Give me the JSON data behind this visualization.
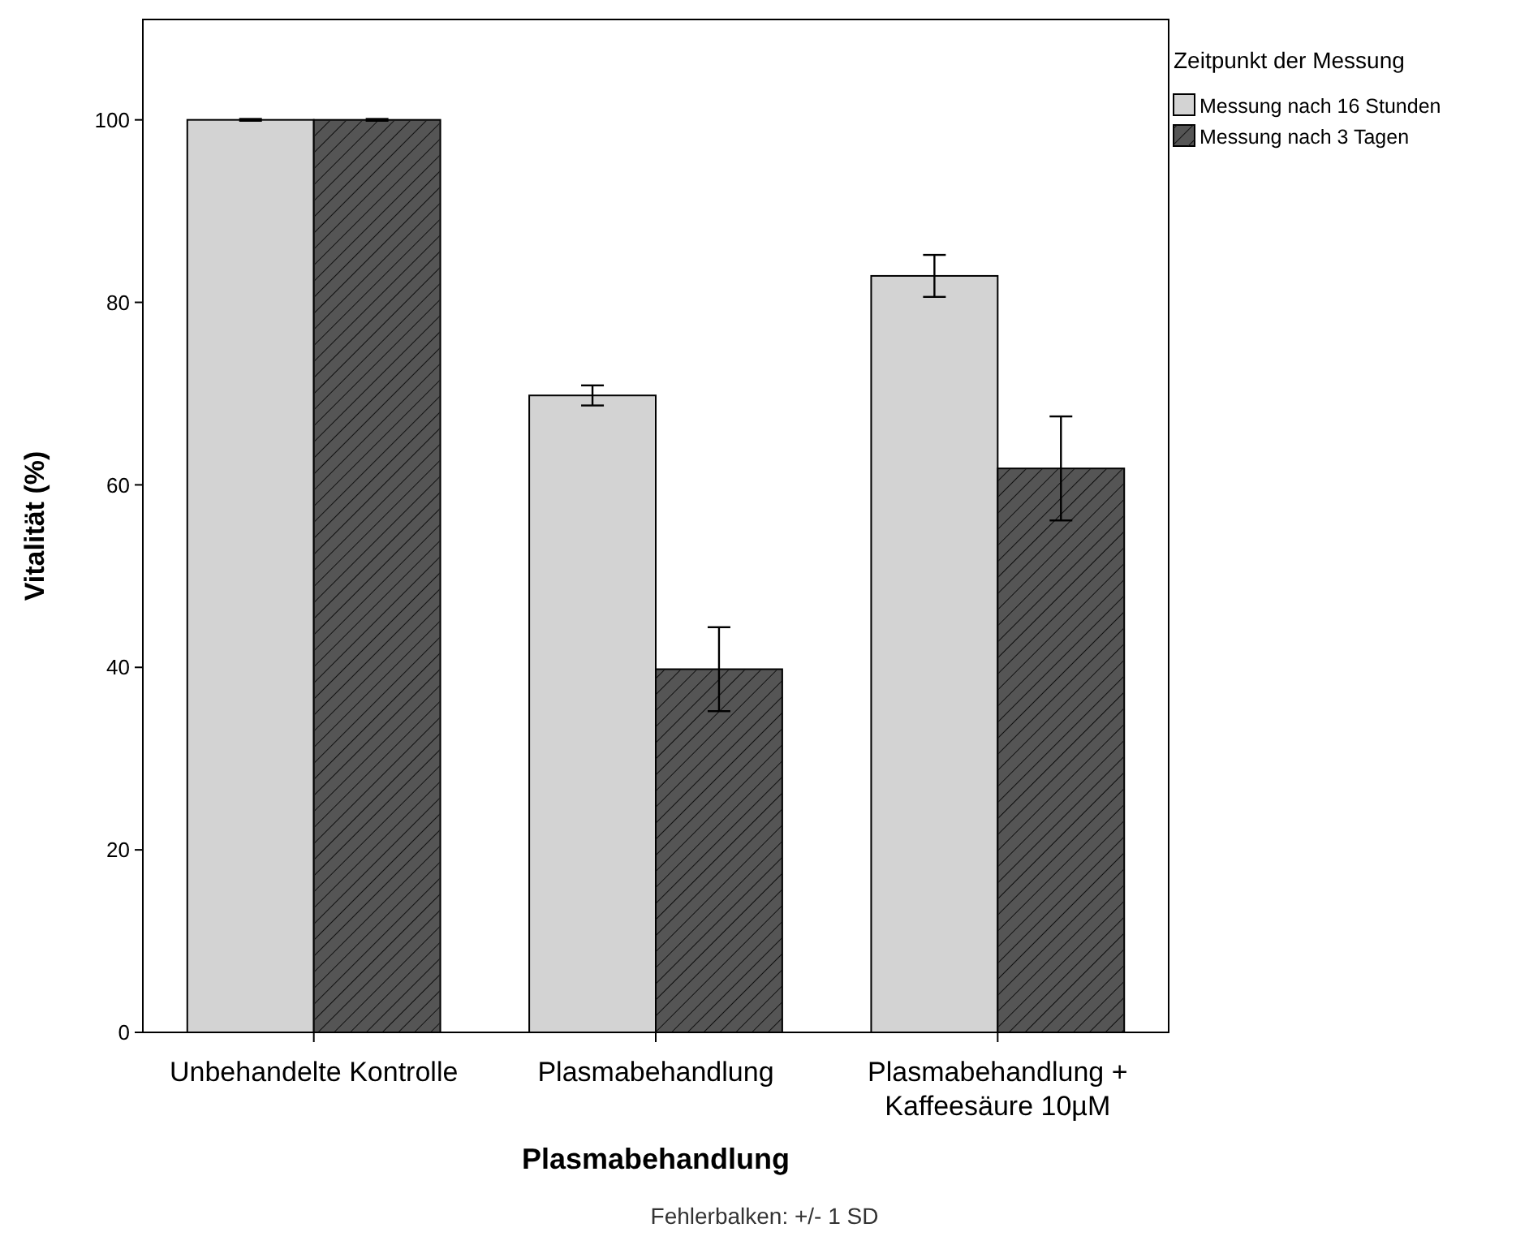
{
  "chart_data": {
    "type": "bar",
    "categories": [
      "Unbehandelte Kontrolle",
      "Plasmabehandlung",
      "Plasmabehandlung + Kaffeesäure 10µM"
    ],
    "series": [
      {
        "name": "Messung nach 16 Stunden",
        "color": "#d3d3d3",
        "values": [
          100,
          69.8,
          82.9
        ],
        "errors": [
          0.1,
          1.1,
          2.3
        ]
      },
      {
        "name": "Messung nach 3 Tagen",
        "color": "#555555",
        "values": [
          100,
          39.8,
          61.8
        ],
        "errors": [
          0.1,
          4.6,
          5.7
        ]
      }
    ],
    "xlabel": "Plasmabehandlung",
    "ylabel": "Vitalität (%)",
    "legend_title": "Zeitpunkt der Messung",
    "legend": "top right",
    "ylim": [
      0,
      111
    ],
    "yticks": [
      0,
      20,
      40,
      60,
      80,
      100
    ],
    "grid": false,
    "annotations": [
      "Fehlerbalken: +/- 1 SD"
    ]
  }
}
